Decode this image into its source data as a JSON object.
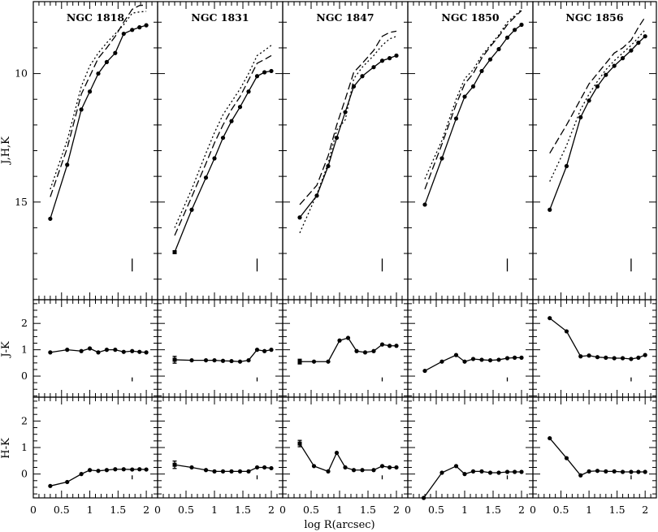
{
  "chart_data": {
    "type": "line",
    "xlabel": "log R(arcsec)",
    "xlim": [
      0,
      2.2
    ],
    "x_ticks": [
      "0",
      "0.5",
      "1",
      "1.5",
      "2"
    ],
    "rows": [
      {
        "id": "jhk",
        "ylabel": "J,H,K",
        "ylim": [
          18.8,
          7.2
        ],
        "yticks": [
          {
            "v": 10,
            "label": "10"
          },
          {
            "v": 15,
            "label": "15"
          }
        ],
        "minor_step": 1
      },
      {
        "id": "jk",
        "ylabel": "J-K",
        "ylim": [
          -0.8,
          2.9
        ],
        "yticks": [
          {
            "v": 0,
            "label": "0"
          },
          {
            "v": 1,
            "label": "1"
          },
          {
            "v": 2,
            "label": "2"
          }
        ],
        "minor_step": 0.25
      },
      {
        "id": "hk",
        "ylabel": "H-K",
        "ylim": [
          -0.9,
          2.9
        ],
        "yticks": [
          {
            "v": 0,
            "label": "0"
          },
          {
            "v": 1,
            "label": "1"
          },
          {
            "v": 2,
            "label": "2"
          }
        ],
        "minor_step": 0.25
      }
    ],
    "panels": [
      {
        "title": "NGC 1818",
        "marker": {
          "x": 1.75,
          "jhk": [
            17.2,
            17.7
          ],
          "jk": [
            -0.2,
            -0.05
          ],
          "hk": [
            -0.2,
            -0.05
          ]
        },
        "K": {
          "x": [
            0.3,
            0.6,
            0.85,
            1.0,
            1.15,
            1.3,
            1.45,
            1.6,
            1.75,
            1.88,
            2.0
          ],
          "y": [
            15.65,
            13.55,
            11.4,
            10.7,
            10.0,
            9.55,
            9.2,
            8.45,
            8.3,
            8.2,
            8.12
          ]
        },
        "H": {
          "x": [
            0.3,
            0.6,
            0.85,
            1.0,
            1.15,
            1.3,
            1.45,
            1.6,
            1.75,
            1.88,
            2.0
          ],
          "y": [
            14.8,
            12.9,
            10.8,
            10.1,
            9.4,
            9.0,
            8.55,
            8.0,
            7.5,
            7.35,
            7.33
          ]
        },
        "J": {
          "x": [
            0.3,
            0.6,
            0.85,
            1.0,
            1.15,
            1.3,
            1.45,
            1.6,
            1.75,
            1.88,
            2.0
          ],
          "y": [
            14.5,
            12.6,
            10.5,
            9.7,
            9.2,
            8.8,
            8.45,
            8.1,
            7.65,
            7.6,
            7.58
          ]
        },
        "JK": {
          "x": [
            0.3,
            0.6,
            0.85,
            1.0,
            1.15,
            1.3,
            1.45,
            1.6,
            1.75,
            1.88,
            2.0
          ],
          "y": [
            0.9,
            1.0,
            0.95,
            1.05,
            0.9,
            1.0,
            1.0,
            0.92,
            0.95,
            0.92,
            0.9
          ]
        },
        "HK": {
          "x": [
            0.3,
            0.6,
            0.85,
            1.0,
            1.15,
            1.3,
            1.45,
            1.6,
            1.75,
            1.88,
            2.0
          ],
          "y": [
            -0.45,
            -0.3,
            0.0,
            0.15,
            0.12,
            0.15,
            0.18,
            0.18,
            0.17,
            0.18,
            0.17
          ]
        }
      },
      {
        "title": "NGC 1831",
        "marker": {
          "x": 1.75,
          "jhk": [
            17.2,
            17.7
          ],
          "jk": [
            -0.2,
            -0.05
          ],
          "hk": [
            -0.2,
            -0.05
          ]
        },
        "K": {
          "x": [
            0.3,
            0.6,
            0.85,
            1.0,
            1.15,
            1.3,
            1.45,
            1.6,
            1.75,
            1.88,
            2.0
          ],
          "y": [
            16.95,
            15.3,
            14.05,
            13.3,
            12.5,
            11.85,
            11.3,
            10.7,
            10.1,
            9.95,
            9.9
          ]
        },
        "H": {
          "x": [
            0.3,
            0.6,
            0.85,
            1.0,
            1.15,
            1.3,
            1.45,
            1.6,
            1.75,
            1.88,
            2.0
          ],
          "y": [
            16.3,
            14.8,
            13.5,
            12.7,
            12.0,
            11.4,
            10.9,
            10.25,
            9.6,
            9.45,
            9.3
          ]
        },
        "J": {
          "x": [
            0.3,
            0.6,
            0.85,
            1.0,
            1.15,
            1.3,
            1.45,
            1.6,
            1.75,
            1.88,
            2.0
          ],
          "y": [
            16.0,
            14.5,
            13.1,
            12.3,
            11.6,
            11.1,
            10.6,
            10.0,
            9.3,
            9.1,
            8.9
          ]
        },
        "JK": {
          "x": [
            0.3,
            0.6,
            0.85,
            1.0,
            1.15,
            1.3,
            1.45,
            1.6,
            1.75,
            1.88,
            2.0
          ],
          "y": [
            0.62,
            0.6,
            0.6,
            0.6,
            0.58,
            0.57,
            0.55,
            0.6,
            1.0,
            0.95,
            1.0
          ]
        },
        "HK": {
          "x": [
            0.3,
            0.6,
            0.85,
            1.0,
            1.15,
            1.3,
            1.45,
            1.6,
            1.75,
            1.88,
            2.0
          ],
          "y": [
            0.35,
            0.25,
            0.15,
            0.1,
            0.1,
            0.1,
            0.1,
            0.1,
            0.25,
            0.25,
            0.22
          ]
        },
        "errors": {
          "JK": 0.13,
          "HK": 0.14
        }
      },
      {
        "title": "NGC 1847",
        "marker": {
          "x": 1.75,
          "jhk": [
            17.2,
            17.7
          ],
          "jk": [
            -0.2,
            -0.05
          ],
          "hk": [
            -0.2,
            -0.05
          ]
        },
        "K": {
          "x": [
            0.3,
            0.6,
            0.8,
            0.95,
            1.1,
            1.25,
            1.4,
            1.6,
            1.75,
            1.88,
            2.0
          ],
          "y": [
            15.6,
            14.75,
            13.6,
            12.5,
            11.5,
            10.5,
            10.1,
            9.75,
            9.5,
            9.4,
            9.3
          ]
        },
        "H": {
          "x": [
            0.3,
            0.6,
            0.8,
            0.95,
            1.1,
            1.25,
            1.4,
            1.6,
            1.75,
            1.88,
            2.0
          ],
          "y": [
            15.1,
            14.35,
            13.2,
            12.0,
            11.0,
            9.95,
            9.6,
            9.1,
            8.55,
            8.4,
            8.35
          ]
        },
        "J": {
          "x": [
            0.3,
            0.6,
            0.8,
            0.95,
            1.1,
            1.25,
            1.4,
            1.6,
            1.75,
            1.88,
            2.0
          ],
          "y": [
            16.2,
            14.7,
            13.5,
            12.2,
            11.8,
            10.2,
            9.75,
            9.3,
            8.9,
            8.65,
            8.55
          ]
        },
        "JK": {
          "x": [
            0.3,
            0.55,
            0.8,
            1.0,
            1.15,
            1.3,
            1.45,
            1.6,
            1.75,
            1.88,
            2.0
          ],
          "y": [
            0.55,
            0.55,
            0.55,
            1.35,
            1.45,
            0.95,
            0.9,
            0.95,
            1.2,
            1.15,
            1.15
          ]
        },
        "HK": {
          "x": [
            0.3,
            0.55,
            0.8,
            0.95,
            1.1,
            1.25,
            1.4,
            1.6,
            1.75,
            1.88,
            2.0
          ],
          "y": [
            1.15,
            0.3,
            0.1,
            0.8,
            0.25,
            0.15,
            0.15,
            0.15,
            0.3,
            0.25,
            0.25
          ]
        },
        "errors": {
          "JK": 0.09,
          "HK": 0.12
        }
      },
      {
        "title": "NGC 1850",
        "marker": {
          "x": 1.75,
          "jhk": [
            17.2,
            17.7
          ],
          "jk": [
            -0.2,
            -0.05
          ],
          "hk": [
            -0.2,
            -0.05
          ]
        },
        "K": {
          "x": [
            0.3,
            0.6,
            0.85,
            1.0,
            1.15,
            1.3,
            1.45,
            1.6,
            1.75,
            1.88,
            2.0
          ],
          "y": [
            15.1,
            13.3,
            11.75,
            10.9,
            10.5,
            9.9,
            9.45,
            9.05,
            8.6,
            8.3,
            8.1
          ]
        },
        "H": {
          "x": [
            0.3,
            0.6,
            0.85,
            1.0,
            1.15,
            1.3,
            1.45,
            1.6,
            1.75,
            1.88,
            2.0
          ],
          "y": [
            14.5,
            12.75,
            11.2,
            10.4,
            10.0,
            9.4,
            8.95,
            8.55,
            8.1,
            7.8,
            7.55
          ]
        },
        "J": {
          "x": [
            0.3,
            0.6,
            0.85,
            1.0,
            1.15,
            1.3,
            1.45,
            1.6,
            1.75,
            1.88,
            2.0
          ],
          "y": [
            14.1,
            12.6,
            11.0,
            10.2,
            9.85,
            9.3,
            8.9,
            8.5,
            8.0,
            7.75,
            7.5
          ]
        },
        "JK": {
          "x": [
            0.3,
            0.6,
            0.85,
            1.0,
            1.15,
            1.3,
            1.45,
            1.6,
            1.75,
            1.88,
            2.0
          ],
          "y": [
            0.2,
            0.55,
            0.8,
            0.55,
            0.65,
            0.62,
            0.6,
            0.62,
            0.68,
            0.7,
            0.7
          ]
        },
        "HK": {
          "x": [
            0.28,
            0.6,
            0.85,
            1.0,
            1.15,
            1.3,
            1.45,
            1.6,
            1.75,
            1.88,
            2.0
          ],
          "y": [
            -0.9,
            0.05,
            0.3,
            0.0,
            0.1,
            0.1,
            0.05,
            0.05,
            0.08,
            0.08,
            0.08
          ]
        }
      },
      {
        "title": "NGC 1856",
        "marker": {
          "x": 1.75,
          "jhk": [
            17.2,
            17.7
          ],
          "jk": [
            -0.2,
            -0.05
          ],
          "hk": [
            -0.2,
            -0.05
          ]
        },
        "K": {
          "x": [
            0.3,
            0.6,
            0.85,
            1.0,
            1.15,
            1.3,
            1.45,
            1.6,
            1.75,
            1.88,
            2.0
          ],
          "y": [
            15.3,
            13.6,
            11.7,
            11.05,
            10.5,
            10.05,
            9.7,
            9.4,
            9.1,
            8.8,
            8.55
          ]
        },
        "H": {
          "x": [
            0.3,
            0.6,
            0.85,
            1.0,
            1.15,
            1.3,
            1.45,
            1.6,
            1.75,
            1.88,
            2.0
          ],
          "y": [
            13.1,
            12.0,
            11.0,
            10.4,
            10.0,
            9.6,
            9.2,
            9.0,
            8.7,
            8.2,
            7.8
          ]
        },
        "J": {
          "x": [
            0.3,
            0.6,
            0.85,
            1.0,
            1.15,
            1.3,
            1.45,
            1.6,
            1.75,
            1.88,
            2.0
          ],
          "y": [
            14.2,
            12.8,
            11.4,
            10.8,
            10.3,
            9.85,
            9.5,
            9.2,
            8.9,
            8.6,
            8.3
          ]
        },
        "JK": {
          "x": [
            0.3,
            0.6,
            0.85,
            1.0,
            1.15,
            1.3,
            1.45,
            1.6,
            1.75,
            1.88,
            2.0
          ],
          "y": [
            2.2,
            1.7,
            0.75,
            0.78,
            0.72,
            0.7,
            0.68,
            0.68,
            0.65,
            0.7,
            0.8
          ]
        },
        "HK": {
          "x": [
            0.3,
            0.6,
            0.85,
            1.0,
            1.15,
            1.3,
            1.45,
            1.6,
            1.75,
            1.88,
            2.0
          ],
          "y": [
            1.35,
            0.6,
            -0.05,
            0.1,
            0.12,
            0.1,
            0.1,
            0.08,
            0.08,
            0.08,
            0.08
          ]
        }
      }
    ]
  }
}
